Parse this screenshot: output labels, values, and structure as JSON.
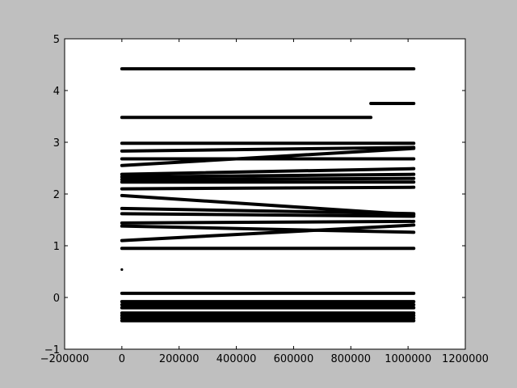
{
  "chart_data": {
    "type": "scatter",
    "title": "",
    "xlabel": "",
    "ylabel": "",
    "xlim": [
      -200000,
      1200000
    ],
    "ylim": [
      -1,
      5
    ],
    "grid": false,
    "marker_color": "#000000",
    "figure_background": "#bfbfbf",
    "axes_background": "#ffffff",
    "x_ticks": [
      -200000,
      0,
      200000,
      400000,
      600000,
      800000,
      1000000,
      1200000
    ],
    "x_tick_labels": [
      "−200000",
      "0",
      "200000",
      "400000",
      "600000",
      "800000",
      "1000000",
      "1200000"
    ],
    "y_ticks": [
      -1,
      0,
      1,
      2,
      3,
      4,
      5
    ],
    "y_tick_labels": [
      "−1",
      "0",
      "1",
      "2",
      "3",
      "4",
      "5"
    ],
    "series": [
      {
        "x": [
          0,
          1020000
        ],
        "y": [
          4.42,
          4.42
        ]
      },
      {
        "x": [
          870000,
          1020000
        ],
        "y": [
          3.75,
          3.75
        ]
      },
      {
        "x": [
          0,
          870000
        ],
        "y": [
          3.48,
          3.48
        ]
      },
      {
        "x": [
          0,
          1020000
        ],
        "y": [
          2.98,
          2.98
        ]
      },
      {
        "x": [
          0,
          1020000
        ],
        "y": [
          2.83,
          2.9
        ]
      },
      {
        "x": [
          0,
          1020000
        ],
        "y": [
          2.68,
          2.68
        ]
      },
      {
        "x": [
          0,
          1020000
        ],
        "y": [
          2.55,
          2.88
        ]
      },
      {
        "x": [
          0,
          1020000
        ],
        "y": [
          2.38,
          2.49
        ]
      },
      {
        "x": [
          0,
          1020000
        ],
        "y": [
          2.33,
          2.38
        ]
      },
      {
        "x": [
          0,
          1020000
        ],
        "y": [
          2.28,
          2.3
        ]
      },
      {
        "x": [
          0,
          1020000
        ],
        "y": [
          2.23,
          2.23
        ]
      },
      {
        "x": [
          0,
          1020000
        ],
        "y": [
          2.1,
          2.13
        ]
      },
      {
        "x": [
          0,
          1020000
        ],
        "y": [
          1.97,
          1.6
        ]
      },
      {
        "x": [
          0,
          1020000
        ],
        "y": [
          1.72,
          1.62
        ]
      },
      {
        "x": [
          0,
          1020000
        ],
        "y": [
          1.62,
          1.57
        ]
      },
      {
        "x": [
          0,
          1020000
        ],
        "y": [
          1.44,
          1.47
        ]
      },
      {
        "x": [
          0,
          1020000
        ],
        "y": [
          1.38,
          1.26
        ]
      },
      {
        "x": [
          0,
          1020000
        ],
        "y": [
          1.1,
          1.4
        ]
      },
      {
        "x": [
          0,
          1020000
        ],
        "y": [
          0.95,
          0.95
        ]
      },
      {
        "x": [
          0,
          0
        ],
        "y": [
          0.54,
          0.54
        ]
      },
      {
        "x": [
          0,
          1020000
        ],
        "y": [
          0.08,
          0.08
        ]
      },
      {
        "x": [
          0,
          1020000
        ],
        "y": [
          -0.08,
          -0.08
        ]
      },
      {
        "x": [
          0,
          1020000
        ],
        "y": [
          -0.14,
          -0.14
        ]
      },
      {
        "x": [
          0,
          1020000
        ],
        "y": [
          -0.2,
          -0.2
        ]
      },
      {
        "x": [
          0,
          1020000
        ],
        "y": [
          -0.3,
          -0.3
        ]
      },
      {
        "x": [
          0,
          1020000
        ],
        "y": [
          -0.35,
          -0.35
        ]
      },
      {
        "x": [
          0,
          1020000
        ],
        "y": [
          -0.4,
          -0.4
        ]
      },
      {
        "x": [
          0,
          1020000
        ],
        "y": [
          -0.45,
          -0.45
        ]
      }
    ]
  }
}
